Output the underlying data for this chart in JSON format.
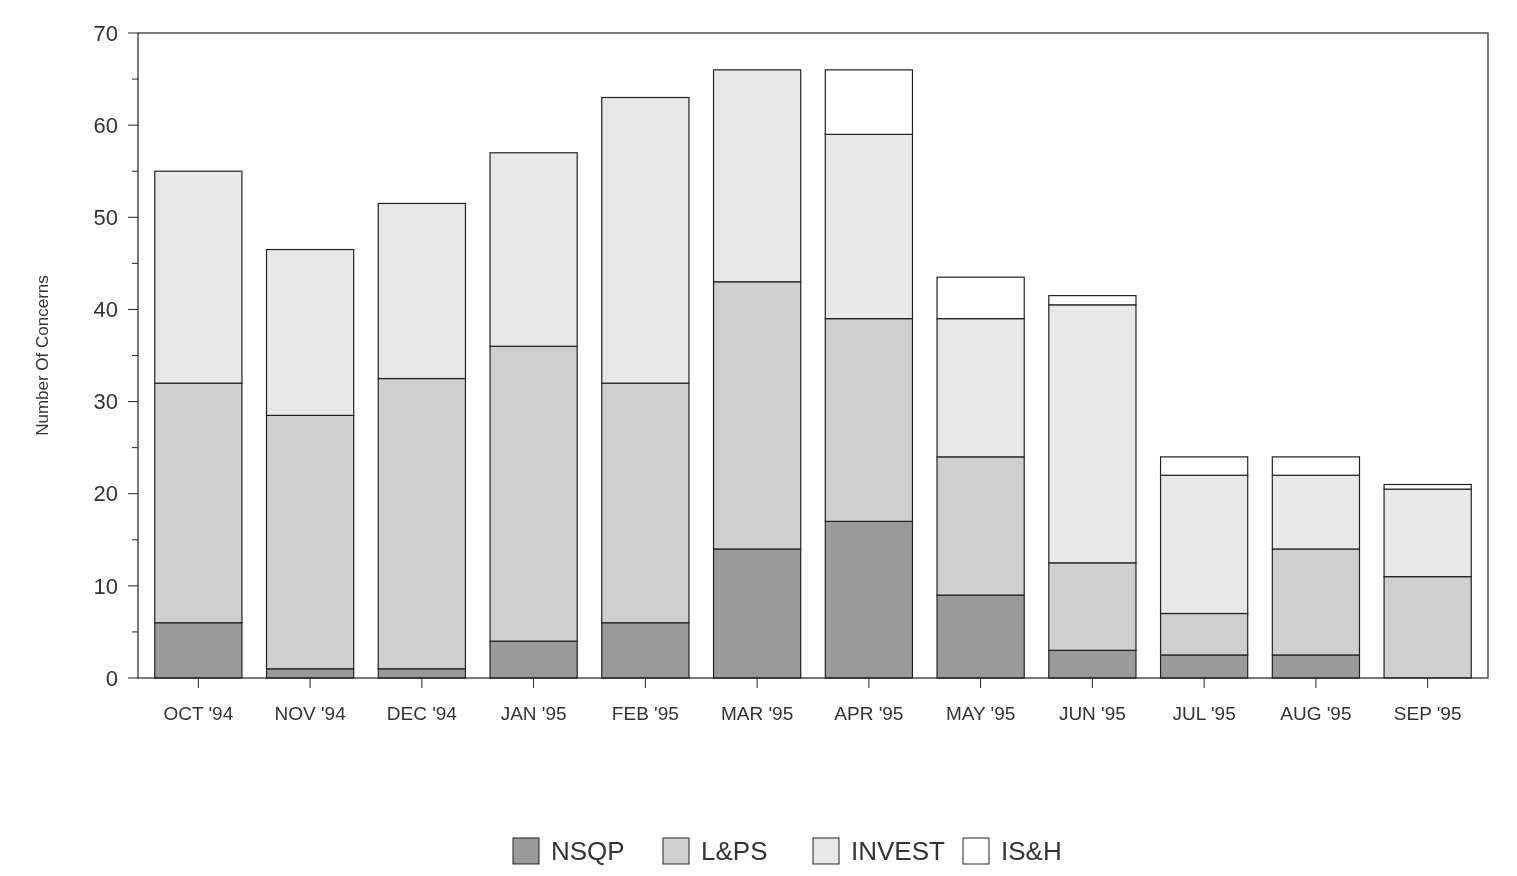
{
  "chart_data": {
    "type": "bar",
    "stacked": true,
    "ylabel": "Number Of Concerns",
    "categories": [
      "OCT '94",
      "NOV '94",
      "DEC '94",
      "JAN '95",
      "FEB '95",
      "MAR '95",
      "APR '95",
      "MAY '95",
      "JUN '95",
      "JUL '95",
      "AUG '95",
      "SEP '95"
    ],
    "series": [
      {
        "name": "NSQP",
        "color": "#9a9a9a",
        "values": [
          6,
          1,
          1,
          4,
          6,
          14,
          17,
          9,
          3,
          2.5,
          2.5,
          0
        ]
      },
      {
        "name": "L&PS",
        "color": "#cfcfcf",
        "values": [
          26,
          27.5,
          31.5,
          32,
          26,
          29,
          22,
          15,
          9.5,
          4.5,
          11.5,
          11
        ]
      },
      {
        "name": "INVEST",
        "color": "#e8e8e8",
        "values": [
          23,
          18,
          19,
          21,
          31,
          23,
          20,
          15,
          28,
          15,
          8,
          9.5
        ]
      },
      {
        "name": "IS&H",
        "color": "#ffffff",
        "values": [
          0,
          0,
          0,
          0,
          0,
          0,
          7,
          4.5,
          1,
          2,
          2,
          0.5
        ]
      }
    ],
    "ylim": [
      0,
      70
    ],
    "yticks": [
      0,
      {
        "value": 5,
        "label": null
      },
      10,
      {
        "value": 15,
        "label": null
      },
      20,
      {
        "value": 25,
        "label": null
      },
      30,
      {
        "value": 35,
        "label": null
      },
      40,
      {
        "value": 45,
        "label": null
      },
      50,
      {
        "value": 55,
        "label": null
      },
      60,
      {
        "value": 65,
        "label": null
      },
      70
    ],
    "legend": "bottom"
  }
}
